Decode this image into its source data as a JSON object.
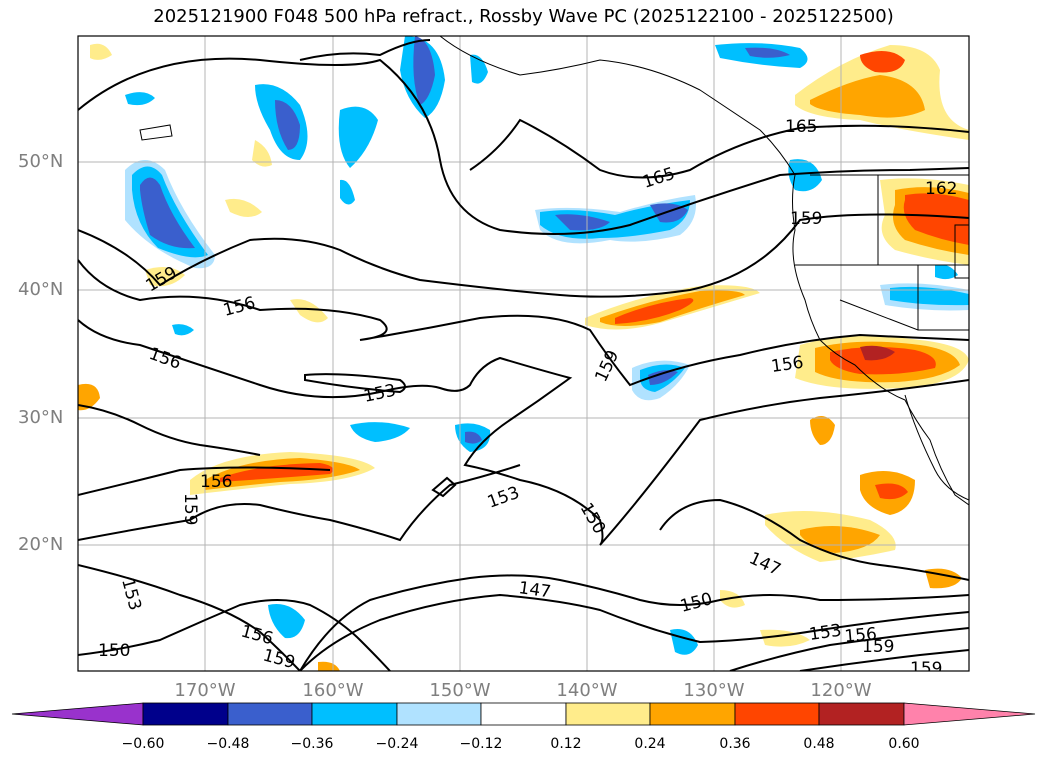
{
  "title": "2025121900 F048 500 hPa refract., Rossby Wave PC (2025122100 - 2025122500)",
  "map": {
    "lon_labels": [
      "170°W",
      "160°W",
      "150°W",
      "140°W",
      "130°W",
      "120°W"
    ],
    "lat_labels": [
      "50°N",
      "40°N",
      "30°N",
      "20°N"
    ],
    "contour_labels": [
      "165",
      "165",
      "162",
      "159",
      "159",
      "156",
      "156",
      "153",
      "156",
      "156",
      "159",
      "159",
      "153",
      "150",
      "147",
      "150",
      "153",
      "156",
      "159",
      "159",
      "153",
      "150",
      "156",
      "159",
      "147"
    ]
  },
  "colorbar": {
    "ticks": [
      "−0.60",
      "−0.48",
      "−0.36",
      "−0.24",
      "−0.12",
      "0.12",
      "0.24",
      "0.36",
      "0.48",
      "0.60"
    ],
    "colors": [
      "#9932cc",
      "#00008b",
      "#3a5fcd",
      "#00bfff",
      "#b0e2ff",
      "#ffffff",
      "#ffec8b",
      "#ffa500",
      "#ff4500",
      "#b22222",
      "#ff82ab"
    ]
  }
}
